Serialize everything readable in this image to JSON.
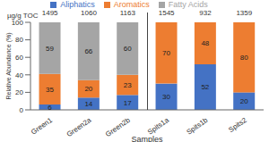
{
  "chart_data": {
    "type": "bar",
    "stacked": true,
    "categories": [
      "Green1",
      "Green2a",
      "Green2b",
      "Spits1a",
      "Spits1b",
      "Spits2"
    ],
    "series": [
      {
        "name": "Aliphatics",
        "color": "#4472c4",
        "values": [
          6,
          14,
          17,
          30,
          52,
          20
        ]
      },
      {
        "name": "Aromatics",
        "color": "#ed7d31",
        "values": [
          35,
          20,
          23,
          70,
          48,
          80
        ]
      },
      {
        "name": "Fatty Acids",
        "color": "#a5a5a5",
        "values": [
          59,
          66,
          60,
          0,
          0,
          0
        ]
      }
    ],
    "ylim": [
      0,
      100
    ],
    "yticks": [
      0,
      20,
      40,
      60,
      80,
      100
    ],
    "y_label": "Relative Abundance (%)",
    "x_label": "Samples",
    "legend": "top",
    "data_labels": true,
    "totals_label": "µg/g TOC",
    "totals": [
      1495,
      1060,
      1163,
      1545,
      932,
      1359
    ]
  }
}
